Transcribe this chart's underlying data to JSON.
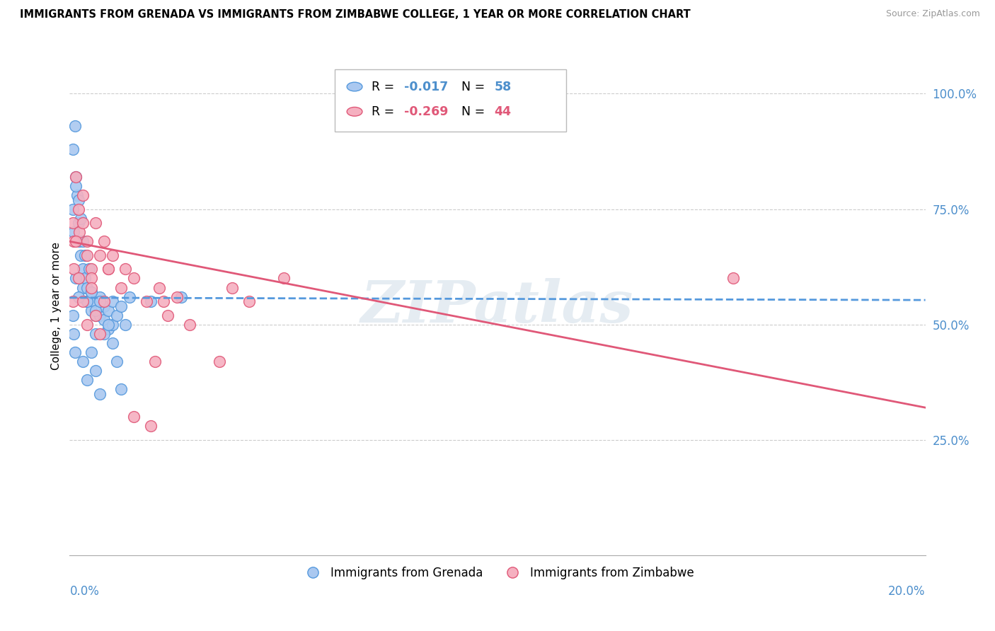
{
  "title": "IMMIGRANTS FROM GRENADA VS IMMIGRANTS FROM ZIMBABWE COLLEGE, 1 YEAR OR MORE CORRELATION CHART",
  "source": "Source: ZipAtlas.com",
  "ylabel": "College, 1 year or more",
  "yaxis_labels": [
    "100.0%",
    "75.0%",
    "50.0%",
    "25.0%"
  ],
  "yaxis_values": [
    1.0,
    0.75,
    0.5,
    0.25
  ],
  "xmin": 0.0,
  "xmax": 0.2,
  "ymin": 0.0,
  "ymax": 1.08,
  "legend_r_grenada": "-0.017",
  "legend_n_grenada": "58",
  "legend_r_zimbabwe": "-0.269",
  "legend_n_zimbabwe": "44",
  "color_grenada_fill": "#aac8f0",
  "color_grenada_edge": "#5599dd",
  "color_zimbabwe_fill": "#f5b0c0",
  "color_zimbabwe_edge": "#e05878",
  "color_grenada_line": "#5599dd",
  "color_zimbabwe_line": "#e05878",
  "color_axis_labels": "#4d8fcc",
  "color_r_grenada": "#4d8fcc",
  "color_r_zimbabwe": "#e05878",
  "color_n_grenada": "#4d8fcc",
  "color_n_zimbabwe": "#e05878",
  "watermark_text": "ZIPatlas",
  "legend_label_grenada": "Immigrants from Grenada",
  "legend_label_zimbabwe": "Immigrants from Zimbabwe",
  "grenada_x": [
    0.0008,
    0.0012,
    0.0015,
    0.0018,
    0.002,
    0.0022,
    0.0025,
    0.003,
    0.003,
    0.0035,
    0.004,
    0.004,
    0.0045,
    0.005,
    0.005,
    0.0055,
    0.006,
    0.006,
    0.007,
    0.007,
    0.008,
    0.008,
    0.009,
    0.009,
    0.01,
    0.01,
    0.011,
    0.012,
    0.013,
    0.014,
    0.0008,
    0.001,
    0.0015,
    0.002,
    0.0025,
    0.003,
    0.0035,
    0.004,
    0.005,
    0.006,
    0.007,
    0.008,
    0.009,
    0.01,
    0.011,
    0.012,
    0.0008,
    0.001,
    0.0012,
    0.0015,
    0.002,
    0.003,
    0.004,
    0.005,
    0.006,
    0.007,
    0.019,
    0.026
  ],
  "grenada_y": [
    0.88,
    0.93,
    0.82,
    0.78,
    0.72,
    0.68,
    0.65,
    0.62,
    0.58,
    0.6,
    0.58,
    0.55,
    0.62,
    0.57,
    0.53,
    0.55,
    0.52,
    0.48,
    0.56,
    0.52,
    0.54,
    0.51,
    0.53,
    0.49,
    0.55,
    0.5,
    0.52,
    0.54,
    0.5,
    0.56,
    0.75,
    0.7,
    0.8,
    0.77,
    0.73,
    0.68,
    0.65,
    0.55,
    0.57,
    0.53,
    0.55,
    0.48,
    0.5,
    0.46,
    0.42,
    0.36,
    0.52,
    0.48,
    0.44,
    0.6,
    0.56,
    0.42,
    0.38,
    0.44,
    0.4,
    0.35,
    0.55,
    0.56
  ],
  "zimbabwe_x": [
    0.0008,
    0.001,
    0.0015,
    0.002,
    0.0022,
    0.003,
    0.003,
    0.004,
    0.004,
    0.005,
    0.005,
    0.006,
    0.007,
    0.008,
    0.009,
    0.01,
    0.012,
    0.013,
    0.015,
    0.018,
    0.02,
    0.021,
    0.022,
    0.023,
    0.025,
    0.028,
    0.035,
    0.038,
    0.042,
    0.05,
    0.0008,
    0.001,
    0.0015,
    0.002,
    0.003,
    0.004,
    0.005,
    0.006,
    0.007,
    0.008,
    0.009,
    0.015,
    0.155,
    0.019
  ],
  "zimbabwe_y": [
    0.72,
    0.68,
    0.82,
    0.75,
    0.7,
    0.78,
    0.72,
    0.68,
    0.65,
    0.62,
    0.6,
    0.72,
    0.65,
    0.68,
    0.62,
    0.65,
    0.58,
    0.62,
    0.6,
    0.55,
    0.42,
    0.58,
    0.55,
    0.52,
    0.56,
    0.5,
    0.42,
    0.58,
    0.55,
    0.6,
    0.55,
    0.62,
    0.68,
    0.6,
    0.55,
    0.5,
    0.58,
    0.52,
    0.48,
    0.55,
    0.62,
    0.3,
    0.6,
    0.28
  ],
  "grenada_line_x": [
    0.0,
    0.2
  ],
  "grenada_line_y": [
    0.558,
    0.553
  ],
  "zimbabwe_line_x": [
    0.0,
    0.2
  ],
  "zimbabwe_line_y": [
    0.68,
    0.32
  ]
}
